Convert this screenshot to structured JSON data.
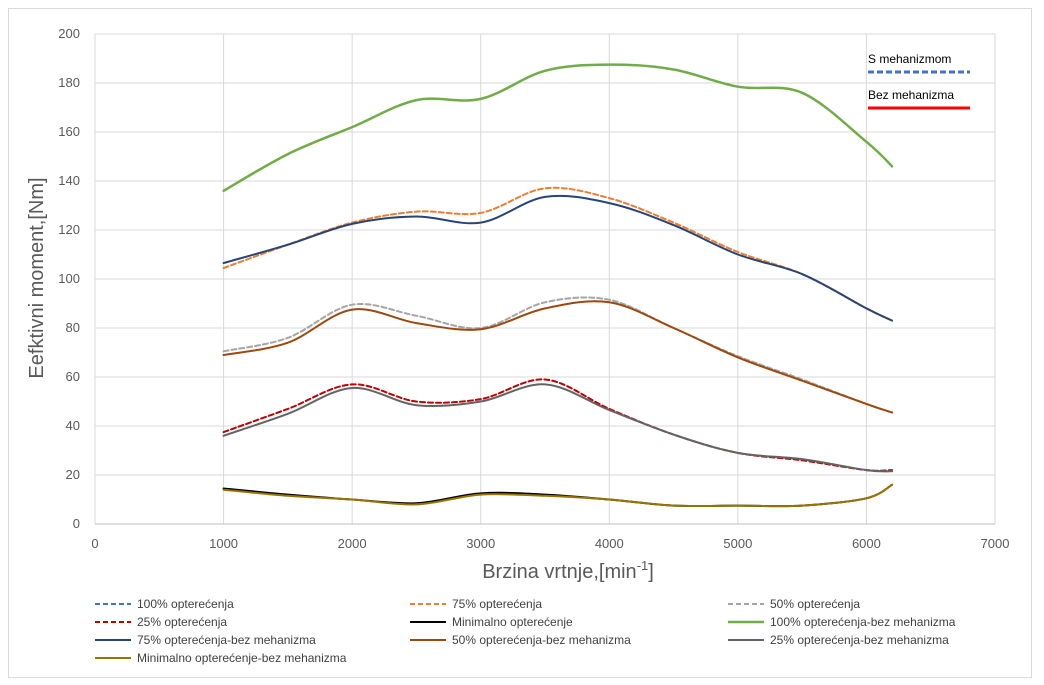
{
  "chart_data": {
    "type": "line",
    "title": "",
    "xlabel": "Brzina vrtnje,[min",
    "xlabel_sup": "-1",
    "xlabel_close": "]",
    "ylabel": "Eefktivni moment,[Nm]",
    "xlim": [
      0,
      7000
    ],
    "ylim": [
      0,
      200
    ],
    "x_ticks": [
      "0",
      "1000",
      "2000",
      "3000",
      "4000",
      "5000",
      "6000",
      "7000"
    ],
    "y_ticks": [
      "0",
      "20",
      "40",
      "60",
      "80",
      "100",
      "120",
      "140",
      "160",
      "180",
      "200"
    ],
    "grid": true,
    "legend_position": "bottom",
    "annotations": [
      {
        "text": "S mehanizmom",
        "style": "dashed",
        "color": "#4472c4"
      },
      {
        "text": "Bez mehanizma",
        "style": "solid",
        "color": "#ff0000"
      }
    ],
    "series": [
      {
        "name": "100% opterećenja",
        "dashed": true,
        "color": "#4472c4",
        "width": 2,
        "x": [
          1000
        ],
        "y": [
          136
        ]
      },
      {
        "name": "75% opterećenja",
        "dashed": true,
        "color": "#ed7d31",
        "width": 2,
        "x": [
          1000,
          1500,
          2000,
          2500,
          3000,
          3500,
          4000,
          4500,
          5000,
          5500,
          6000,
          6200
        ],
        "y": [
          104.5,
          114,
          123,
          127.5,
          127,
          137,
          133,
          123,
          111,
          102,
          88,
          83
        ]
      },
      {
        "name": "50% opterećenja",
        "dashed": true,
        "color": "#a5a5a5",
        "width": 2,
        "x": [
          1000,
          1500,
          2000,
          2500,
          3000,
          3500,
          4000,
          4500,
          5000,
          5500,
          6000,
          6200
        ],
        "y": [
          70.5,
          76,
          89.5,
          85,
          80,
          90.5,
          91.5,
          80,
          68.5,
          59,
          49,
          45.5
        ]
      },
      {
        "name": "25% opterećenja",
        "dashed": true,
        "color": "#c00000",
        "width": 2,
        "x": [
          1000,
          1500,
          2000,
          2500,
          3000,
          3500,
          4000,
          4500,
          5000,
          5500,
          6000,
          6200
        ],
        "y": [
          37.5,
          47,
          57,
          50,
          51,
          59,
          47,
          36.5,
          29,
          26,
          22,
          22
        ]
      },
      {
        "name": "Minimalno opterećenje",
        "dashed": false,
        "color": "#000000",
        "width": 2,
        "x": [
          1000,
          1500,
          2000,
          2500,
          3000,
          3500,
          4000,
          4500,
          5000,
          5500,
          6000,
          6200
        ],
        "y": [
          14.5,
          12,
          10,
          8.5,
          12.5,
          12,
          10,
          7.5,
          7.5,
          7.5,
          10.5,
          16
        ]
      },
      {
        "name": "100% opterećenja-bez mehanizma",
        "dashed": false,
        "color": "#70ad47",
        "width": 2.5,
        "x": [
          1000,
          1500,
          2000,
          2500,
          3000,
          3500,
          4000,
          4500,
          5000,
          5500,
          6000,
          6200
        ],
        "y": [
          136,
          151,
          162,
          173,
          173.5,
          185,
          187.5,
          185.5,
          178.5,
          176,
          156,
          146
        ]
      },
      {
        "name": "75% opterećenja-bez mehanizma",
        "dashed": false,
        "color": "#264478",
        "width": 2,
        "x": [
          1000,
          1500,
          2000,
          2500,
          3000,
          3500,
          4000,
          4500,
          5000,
          5500,
          6000,
          6200
        ],
        "y": [
          106.5,
          114,
          122.5,
          125.5,
          123,
          133.5,
          131,
          122,
          110,
          102,
          88,
          83
        ]
      },
      {
        "name": "50% opterećenja-bez mehanizma",
        "dashed": false,
        "color": "#9e480e",
        "width": 2,
        "x": [
          1000,
          1500,
          2000,
          2500,
          3000,
          3500,
          4000,
          4500,
          5000,
          5500,
          6000,
          6200
        ],
        "y": [
          69,
          74,
          87.5,
          82,
          79.5,
          88,
          90.5,
          80,
          68,
          58.5,
          49,
          45.5
        ]
      },
      {
        "name": "25% opterećenja-bez mehanizma",
        "dashed": false,
        "color": "#636363",
        "width": 2,
        "x": [
          1000,
          1500,
          2000,
          2500,
          3000,
          3500,
          4000,
          4500,
          5000,
          5500,
          6000,
          6200
        ],
        "y": [
          36,
          45,
          55.5,
          48.5,
          50,
          57,
          46.5,
          36.5,
          29,
          26.5,
          22,
          21.5
        ]
      },
      {
        "name": "Minimalno opterećenje-bez mehanizma",
        "dashed": false,
        "color": "#997300",
        "width": 2,
        "x": [
          1000,
          1500,
          2000,
          2500,
          3000,
          3500,
          4000,
          4500,
          5000,
          5500,
          6000,
          6200
        ],
        "y": [
          14,
          11.5,
          10,
          8,
          12,
          11.5,
          10,
          7.5,
          7.5,
          7.5,
          10.5,
          16
        ]
      }
    ]
  }
}
